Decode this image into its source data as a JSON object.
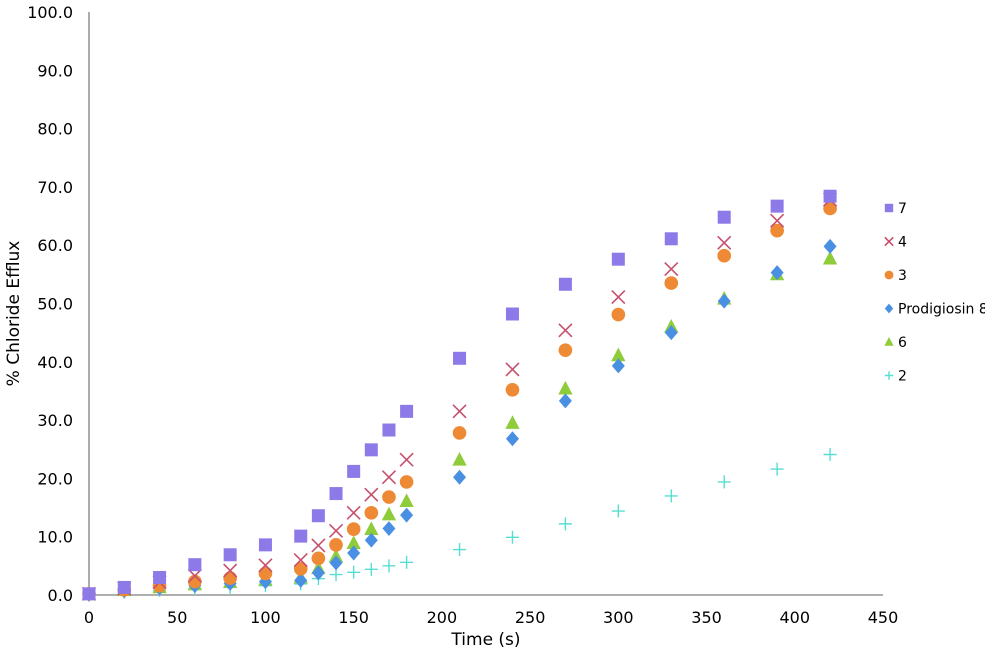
{
  "chart_data": {
    "type": "scatter",
    "title": "",
    "xlabel": "Time (s)",
    "ylabel": "% Chloride Efflux",
    "xlim": [
      0,
      450
    ],
    "ylim": [
      0,
      100
    ],
    "xticks": [
      "0",
      "50",
      "100",
      "150",
      "200",
      "250",
      "300",
      "350",
      "400",
      "450"
    ],
    "yticks": [
      "0.0",
      "10.0",
      "20.0",
      "30.0",
      "40.0",
      "50.0",
      "60.0",
      "70.0",
      "80.0",
      "90.0",
      "100.0"
    ],
    "grid": false,
    "legend_position": "right",
    "series": [
      {
        "name": "7",
        "marker": "square",
        "color": "#8e79e8",
        "x": [
          0,
          20,
          40,
          60,
          80,
          100,
          120,
          130,
          140,
          150,
          160,
          170,
          180,
          210,
          240,
          270,
          300,
          330,
          360,
          390,
          420
        ],
        "y": [
          0.2,
          1.3,
          3.0,
          5.2,
          6.9,
          8.6,
          10.1,
          13.6,
          17.4,
          21.2,
          24.9,
          28.3,
          31.5,
          40.6,
          48.2,
          53.3,
          57.6,
          61.1,
          64.8,
          66.7,
          68.4
        ]
      },
      {
        "name": "4",
        "marker": "x",
        "color": "#c6506e",
        "x": [
          0,
          20,
          40,
          60,
          80,
          100,
          120,
          130,
          140,
          150,
          160,
          170,
          180,
          210,
          240,
          270,
          300,
          330,
          360,
          390,
          420
        ],
        "y": [
          0.2,
          1.1,
          2.2,
          3.3,
          4.2,
          5.1,
          6.0,
          8.5,
          11.0,
          14.1,
          17.2,
          20.2,
          23.2,
          31.5,
          38.7,
          45.4,
          51.1,
          55.9,
          60.4,
          64.2,
          67.8
        ]
      },
      {
        "name": "3",
        "marker": "circle",
        "color": "#ee8a35",
        "x": [
          0,
          20,
          40,
          60,
          80,
          100,
          120,
          130,
          140,
          150,
          160,
          170,
          180,
          210,
          240,
          270,
          300,
          330,
          360,
          390,
          420
        ],
        "y": [
          0.2,
          0.9,
          1.6,
          2.3,
          2.9,
          3.7,
          4.5,
          6.3,
          8.6,
          11.3,
          14.1,
          16.8,
          19.4,
          27.8,
          35.2,
          42.0,
          48.1,
          53.5,
          58.2,
          62.5,
          66.3
        ]
      },
      {
        "name": "Prodigiosin 8",
        "marker": "diamond",
        "color": "#4a90e2",
        "x": [
          0,
          20,
          40,
          60,
          80,
          100,
          120,
          130,
          140,
          150,
          160,
          170,
          180,
          210,
          240,
          270,
          300,
          330,
          360,
          390,
          420
        ],
        "y": [
          0.1,
          0.7,
          1.2,
          1.6,
          2.0,
          2.3,
          2.5,
          3.8,
          5.5,
          7.2,
          9.4,
          11.4,
          13.7,
          20.2,
          26.8,
          33.3,
          39.3,
          45.0,
          50.4,
          55.3,
          59.8
        ]
      },
      {
        "name": "6",
        "marker": "triangle",
        "color": "#8fcc3a",
        "x": [
          0,
          20,
          40,
          60,
          80,
          100,
          120,
          130,
          140,
          150,
          160,
          170,
          180,
          210,
          240,
          270,
          300,
          330,
          360,
          390,
          420
        ],
        "y": [
          0.1,
          0.8,
          1.3,
          1.8,
          2.2,
          2.6,
          3.0,
          4.6,
          6.6,
          8.9,
          11.3,
          13.8,
          16.1,
          23.2,
          29.5,
          35.4,
          41.1,
          46.0,
          50.8,
          55.0,
          57.7
        ]
      },
      {
        "name": "2",
        "marker": "plus",
        "color": "#58ddd2",
        "x": [
          0,
          20,
          40,
          60,
          80,
          100,
          120,
          130,
          140,
          150,
          160,
          170,
          180,
          210,
          240,
          270,
          300,
          330,
          360,
          390,
          420
        ],
        "y": [
          0.1,
          0.5,
          0.8,
          1.1,
          1.3,
          1.6,
          1.9,
          2.8,
          3.5,
          3.9,
          4.4,
          5.0,
          5.6,
          7.8,
          9.9,
          12.2,
          14.4,
          17.0,
          19.4,
          21.6,
          24.1
        ]
      }
    ]
  }
}
